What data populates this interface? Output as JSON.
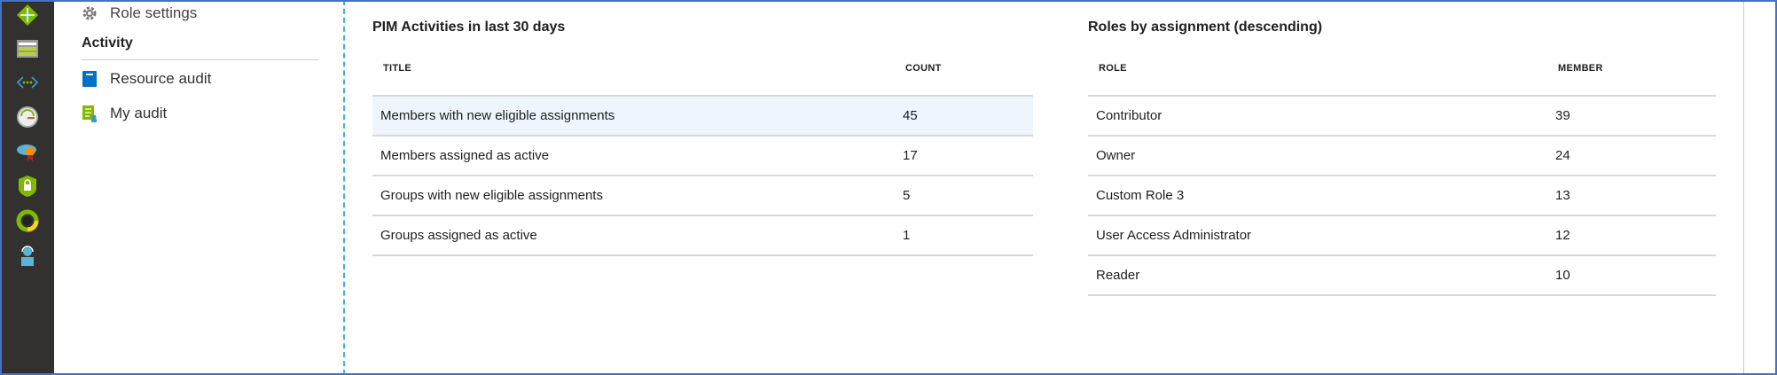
{
  "iconbar": {
    "icons": [
      "network-diamond-icon",
      "storage-icon",
      "virtual-network-icon",
      "gauge-icon",
      "cloud-certificate-icon",
      "shield-lock-icon",
      "cost-donut-icon",
      "support-user-icon"
    ]
  },
  "nav": {
    "partial_item": "Role settings",
    "section": "Activity",
    "items": [
      {
        "label": "Resource audit",
        "icon": "book-icon"
      },
      {
        "label": "My audit",
        "icon": "audit-list-icon"
      }
    ]
  },
  "activities": {
    "title": "PIM Activities in last 30 days",
    "columns": [
      "TITLE",
      "COUNT"
    ],
    "rows": [
      {
        "title": "Members with new eligible assignments",
        "count": "45"
      },
      {
        "title": "Members assigned as active",
        "count": "17"
      },
      {
        "title": "Groups with new eligible assignments",
        "count": "5"
      },
      {
        "title": "Groups assigned as active",
        "count": "1"
      }
    ]
  },
  "roles": {
    "title": "Roles by assignment (descending)",
    "columns": [
      "ROLE",
      "MEMBER"
    ],
    "rows": [
      {
        "role": "Contributor",
        "member": "39"
      },
      {
        "role": "Owner",
        "member": "24"
      },
      {
        "role": "Custom Role 3",
        "member": "13"
      },
      {
        "role": "User Access Administrator",
        "member": "12"
      },
      {
        "role": "Reader",
        "member": "10"
      }
    ]
  },
  "colors": {
    "frame": "#4472c4",
    "iconbar": "#323130",
    "highlight_row": "#eef5fd",
    "dashed_divider": "#3ab4e6"
  }
}
